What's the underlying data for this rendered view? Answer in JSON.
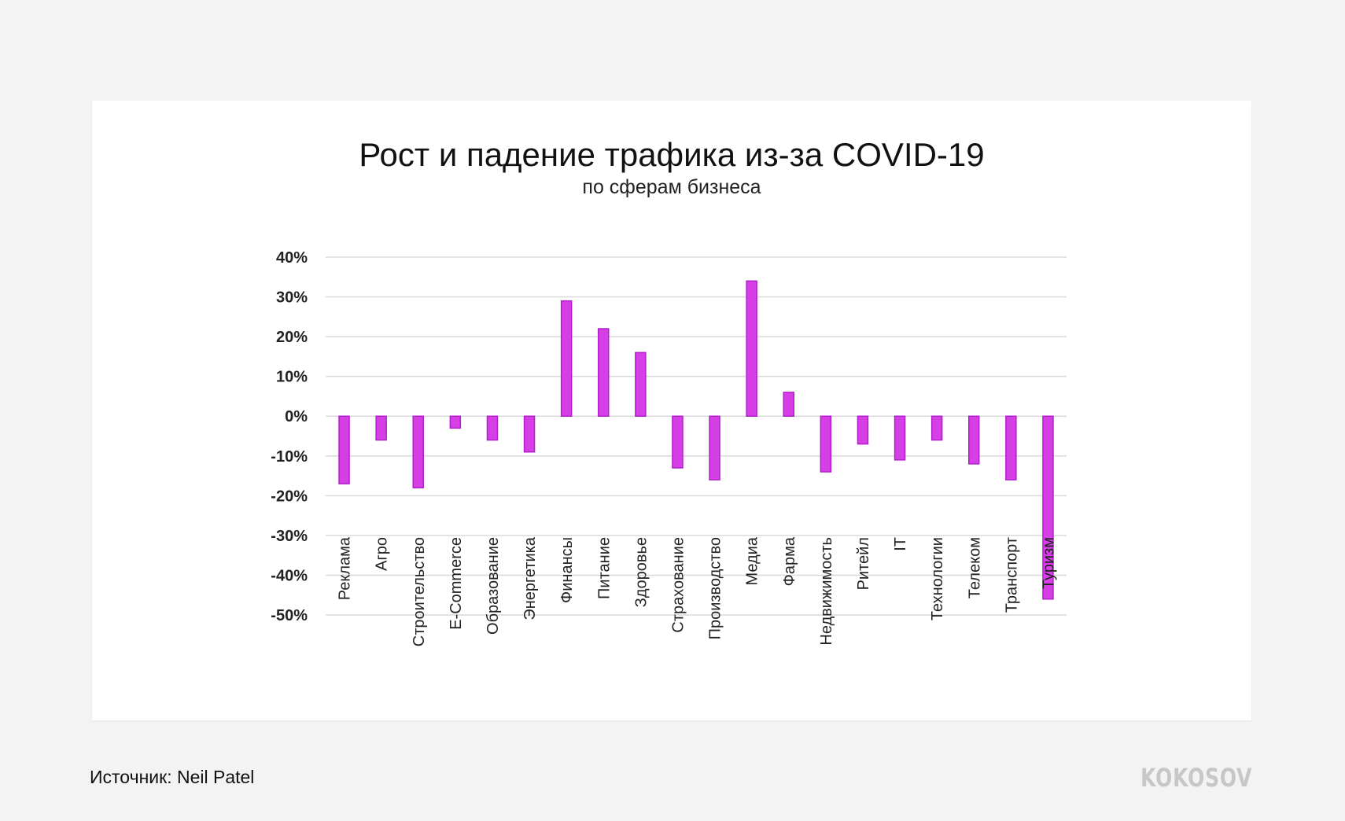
{
  "chart_data": {
    "type": "bar",
    "title": "Рост и падение трафика из-за COVID-19",
    "subtitle": "по сферам бизнеса",
    "categories": [
      "Реклама",
      "Агро",
      "Строительство",
      "E-Commerce",
      "Образование",
      "Энергетика",
      "Финансы",
      "Питание",
      "Здоровье",
      "Страхование",
      "Производство",
      "Медиа",
      "Фарма",
      "Недвижимость",
      "Ритейл",
      "IT",
      "Технологии",
      "Телеком",
      "Транспорт",
      "Туризм"
    ],
    "values": [
      -17,
      -6,
      -18,
      -3,
      -6,
      -9,
      29,
      22,
      16,
      -13,
      -16,
      34,
      6,
      -14,
      -7,
      -11,
      -6,
      -12,
      -16,
      -46
    ],
    "ylim": [
      -50,
      40
    ],
    "yticks": [
      40,
      30,
      20,
      10,
      0,
      -10,
      -20,
      -30,
      -40,
      -50
    ],
    "ytick_labels": [
      "40%",
      "30%",
      "20%",
      "10%",
      "0%",
      "-10%",
      "-20%",
      "-30%",
      "-40%",
      "-50%"
    ],
    "xlabel": "",
    "ylabel": "",
    "grid": true,
    "legend": "none",
    "bar_color": "#d63ee6",
    "bar_edge_color": "#b020c8",
    "grid_color": "#d9d9d9"
  },
  "footer": {
    "source": "Источник: Neil Patel",
    "brand": "KOKOSOV"
  }
}
